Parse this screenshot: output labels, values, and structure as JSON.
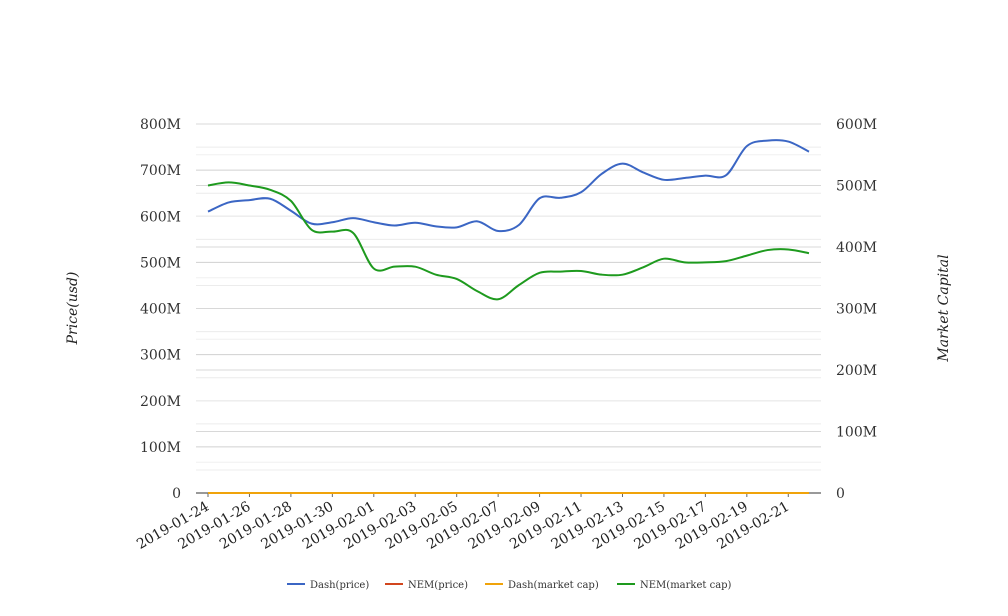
{
  "chart_data": {
    "type": "line",
    "x": [
      "2019-01-24",
      "2019-01-25",
      "2019-01-26",
      "2019-01-27",
      "2019-01-28",
      "2019-01-29",
      "2019-01-30",
      "2019-01-31",
      "2019-02-01",
      "2019-02-02",
      "2019-02-03",
      "2019-02-04",
      "2019-02-05",
      "2019-02-06",
      "2019-02-07",
      "2019-02-08",
      "2019-02-09",
      "2019-02-10",
      "2019-02-11",
      "2019-02-12",
      "2019-02-13",
      "2019-02-14",
      "2019-02-15",
      "2019-02-16",
      "2019-02-17",
      "2019-02-18",
      "2019-02-19",
      "2019-02-20",
      "2019-02-21",
      "2019-02-22"
    ],
    "x_tick_labels": [
      "2019-01-24",
      "2019-01-26",
      "2019-01-28",
      "2019-01-30",
      "2019-02-01",
      "2019-02-03",
      "2019-02-05",
      "2019-02-07",
      "2019-02-09",
      "2019-02-11",
      "2019-02-13",
      "2019-02-15",
      "2019-02-17",
      "2019-02-19",
      "2019-02-21"
    ],
    "ylabel": "Price(usd)",
    "y2label": "Market Capital",
    "ylim": [
      0,
      800000000
    ],
    "y2lim": [
      0,
      600000000
    ],
    "y_ticks": [
      "0",
      "100M",
      "200M",
      "300M",
      "400M",
      "500M",
      "600M",
      "700M",
      "800M"
    ],
    "y2_ticks": [
      "0",
      "100M",
      "200M",
      "300M",
      "400M",
      "500M",
      "600M"
    ],
    "grid": true,
    "legend_position": "bottom",
    "series": [
      {
        "name": "Dash(price)",
        "axis": "left",
        "color": "#3b66c4",
        "values": [
          610000000,
          630000000,
          635000000,
          638000000,
          612000000,
          584000000,
          587000000,
          596000000,
          587000000,
          580000000,
          586000000,
          578000000,
          576000000,
          589000000,
          568000000,
          581000000,
          639000000,
          640000000,
          652000000,
          692000000,
          714000000,
          695000000,
          679000000,
          683000000,
          688000000,
          689000000,
          752000000,
          764000000,
          762000000,
          740000000
        ]
      },
      {
        "name": "NEM(price)",
        "axis": "left",
        "color": "#d2461e",
        "values": [
          0.04,
          0.04,
          0.04,
          0.04,
          0.04,
          0.04,
          0.04,
          0.04,
          0.04,
          0.04,
          0.04,
          0.04,
          0.04,
          0.04,
          0.04,
          0.04,
          0.04,
          0.04,
          0.04,
          0.04,
          0.04,
          0.04,
          0.04,
          0.04,
          0.04,
          0.04,
          0.04,
          0.04,
          0.04,
          0.04
        ]
      },
      {
        "name": "Dash(market cap)",
        "axis": "right",
        "color": "#f0a30a",
        "values": [
          0,
          0,
          0,
          0,
          0,
          0,
          0,
          0,
          0,
          0,
          0,
          0,
          0,
          0,
          0,
          0,
          0,
          0,
          0,
          0,
          0,
          0,
          0,
          0,
          0,
          0,
          0,
          0,
          0,
          0
        ]
      },
      {
        "name": "NEM(market cap)",
        "axis": "right",
        "color": "#1e9a1e",
        "values": [
          500000000,
          505000000,
          500000000,
          493000000,
          475000000,
          428000000,
          425000000,
          423000000,
          365000000,
          368000000,
          368000000,
          355000000,
          348000000,
          328000000,
          315000000,
          338000000,
          358000000,
          360000000,
          361000000,
          355000000,
          355000000,
          367000000,
          381000000,
          375000000,
          375000000,
          377000000,
          386000000,
          395000000,
          396000000,
          390000000
        ]
      }
    ]
  }
}
